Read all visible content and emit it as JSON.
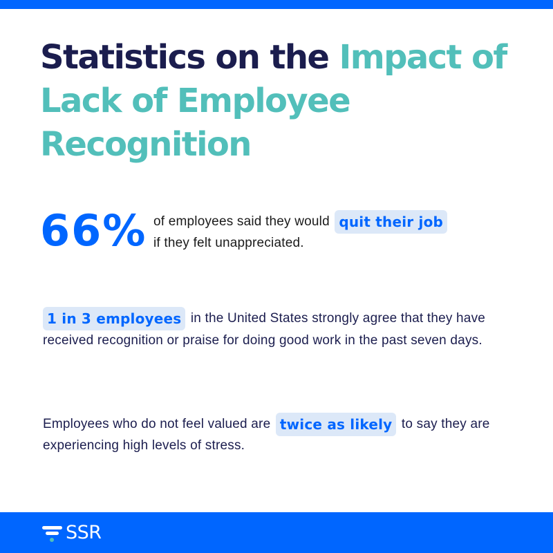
{
  "colors": {
    "brand_blue": "#0066FF",
    "navy": "#1B1D4E",
    "teal": "#52BFBA",
    "highlight_bg": "#DCE8F8",
    "background": "#FFFFFF"
  },
  "title": {
    "part1": "Statistics on the ",
    "part2": "Impact of Lack of Employee Recognition"
  },
  "stats": [
    {
      "big_number": "66%",
      "text_before": "of employees said they would",
      "highlight": "quit their job",
      "text_after": "if they felt unappreciated."
    },
    {
      "highlight": "1 in 3 employees",
      "text_after": "in the United States strongly agree that they have received recognition or praise for doing good work in the past seven days."
    },
    {
      "text_before": "Employees who do not feel valued are",
      "highlight": "twice as likely",
      "text_after": "to say they are experiencing high levels of stress."
    }
  ],
  "footer": {
    "logo_icon": "filter-lines-icon",
    "logo_text": "SSR"
  }
}
